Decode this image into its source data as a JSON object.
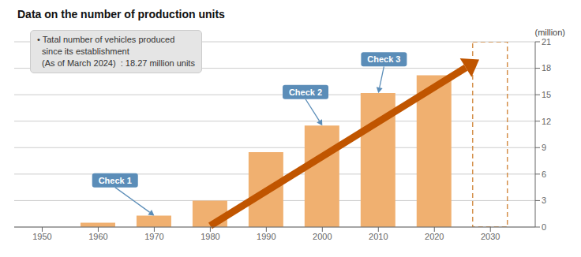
{
  "chart_data": {
    "type": "bar",
    "title": "Data on the number of production units",
    "ylabel": "(million)",
    "info_text": [
      "• Tatal number of vehicles produced",
      "  since its establishment",
      "  (As of March 2024)  : 18.27 million units"
    ],
    "x": [
      1950,
      1960,
      1970,
      1980,
      1990,
      2000,
      2010,
      2020,
      2030
    ],
    "values": [
      0,
      0.5,
      1.3,
      3.0,
      8.5,
      11.5,
      15.2,
      17.2,
      0
    ],
    "color": "#F0B070",
    "outline_bar": {
      "x": 2030,
      "value": 21,
      "color": "#D4904A",
      "line_style": "dashed"
    },
    "trend_arrow": {
      "x": [
        1980,
        2028
      ],
      "y": [
        0.15,
        19.0
      ],
      "color": "#C05500"
    },
    "callouts": [
      {
        "text": "Check 1",
        "x": 1970,
        "y": 1.3,
        "text_x": 1963,
        "text_y": 4.5
      },
      {
        "text": "Check 2",
        "x": 2000,
        "y": 11.5,
        "text_x": 1997,
        "text_y": 14.5
      },
      {
        "text": "Check 3",
        "x": 2010,
        "y": 15.2,
        "text_x": 2011,
        "text_y": 18.2
      }
    ],
    "callout_color": "#5B8DB8",
    "xlim": [
      1945,
      2038
    ],
    "xticks": [
      1950,
      1960,
      1970,
      1980,
      1990,
      2000,
      2010,
      2020,
      2030
    ],
    "ylim": [
      0,
      21
    ],
    "yticks": [
      0,
      3,
      6,
      9,
      12,
      15,
      18,
      21
    ],
    "grid": true
  }
}
